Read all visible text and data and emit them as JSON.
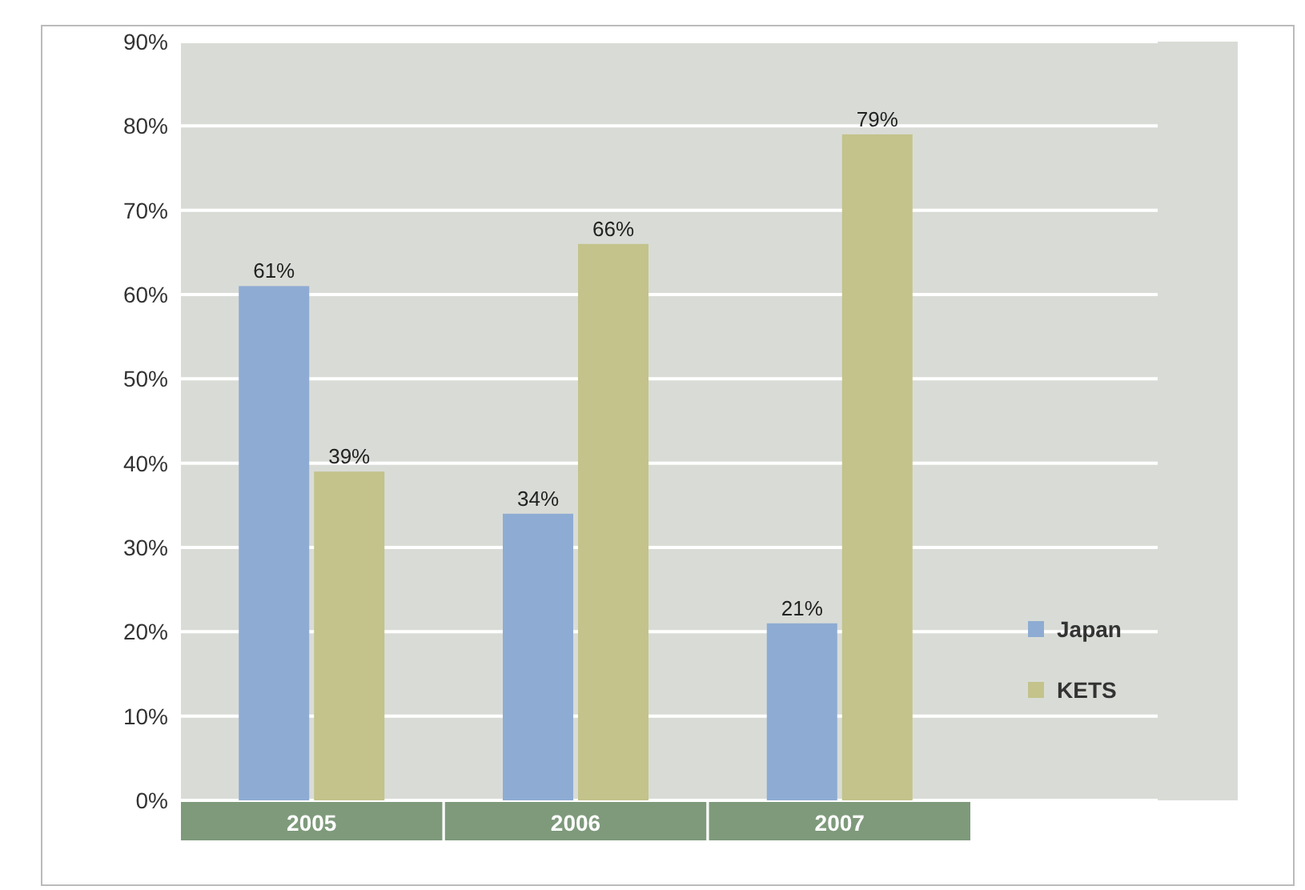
{
  "chart_data": {
    "type": "bar",
    "categories": [
      "2005",
      "2006",
      "2007"
    ],
    "series": [
      {
        "name": "Japan",
        "color": "#8eacd3",
        "values": [
          61,
          34,
          21
        ]
      },
      {
        "name": "KETS",
        "color": "#c3c38b",
        "values": [
          39,
          66,
          79
        ]
      }
    ],
    "ylim": [
      0,
      90
    ],
    "yticks": [
      {
        "value": 0,
        "label": "0%"
      },
      {
        "value": 10,
        "label": "10%"
      },
      {
        "value": 20,
        "label": "20%"
      },
      {
        "value": 30,
        "label": "30%"
      },
      {
        "value": 40,
        "label": "40%"
      },
      {
        "value": 50,
        "label": "50%"
      },
      {
        "value": 60,
        "label": "60%"
      },
      {
        "value": 70,
        "label": "70%"
      },
      {
        "value": 80,
        "label": "80%"
      },
      {
        "value": 90,
        "label": "90%"
      }
    ],
    "value_labels": [
      [
        "61%",
        "34%",
        "21%"
      ],
      [
        "39%",
        "66%",
        "79%"
      ]
    ],
    "grid": "y",
    "legend": "right"
  }
}
